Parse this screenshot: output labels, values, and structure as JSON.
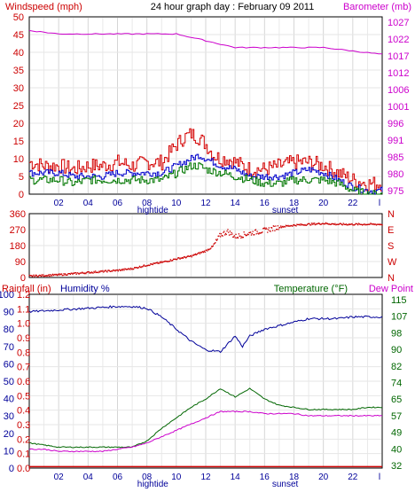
{
  "header": {
    "title": "24 hour graph day : February 09 2011",
    "left_label": "Windspeed (mph)",
    "right_label": "Barometer (mb)"
  },
  "x_axis": {
    "ticks": [
      "02",
      "04",
      "06",
      "08",
      "10",
      "12",
      "14",
      "16",
      "18",
      "20",
      "22",
      "l"
    ],
    "hightide_label": "hightide",
    "sunset_label": "sunset"
  },
  "wind_panel": {
    "right_ticks": [
      "975",
      "980",
      "985",
      "991",
      "996",
      "1001",
      "1006",
      "1012",
      "1017",
      "1022",
      "1027"
    ]
  },
  "direction_panel": {
    "left_ticks": [
      "0",
      "90",
      "180",
      "270",
      "360"
    ],
    "right_letters": [
      "N",
      "E",
      "S",
      "W",
      "N"
    ]
  },
  "temp_panel": {
    "rain_label": "Rainfall (in)",
    "humidity_label": "Humidity %",
    "temp_label": "Temperature (°F)",
    "dew_label": "Dew Point",
    "rain_ticks": [
      "0.0",
      "0.1",
      "0.2",
      "0.3",
      "0.4",
      "0.5",
      "0.6",
      "0.7",
      "0.8",
      "0.9",
      "1.0",
      "1.1",
      "1.2"
    ],
    "right_ticks": [
      "32",
      "40",
      "49",
      "57",
      "65",
      "74",
      "82",
      "90",
      "98",
      "107",
      "115"
    ]
  },
  "colors": {
    "windspeed": "#d40000",
    "gust": "#0000cc",
    "avg_wind": "#007700",
    "barometer": "#cc00cc",
    "direction": "#cc0000",
    "humidity": "#000099",
    "temperature": "#006600",
    "dewpoint": "#cc00cc",
    "rainfall": "#cc0000"
  },
  "chart_data": [
    {
      "type": "line",
      "x_unit": "hour",
      "xlim": [
        0,
        24
      ],
      "ylim": [
        0,
        50
      ],
      "y2lim": [
        975,
        1027
      ],
      "grid": true,
      "series": [
        {
          "key": "windspeed",
          "axis": "left",
          "x": [
            0,
            1,
            2,
            3,
            4,
            5,
            6,
            7,
            8,
            9,
            10,
            10.5,
            11,
            11.5,
            12,
            12.5,
            13,
            13.5,
            14,
            15,
            16,
            17,
            18,
            19,
            20,
            21,
            22,
            23,
            24
          ],
          "values": [
            9,
            8,
            8,
            7,
            8,
            8,
            9,
            8,
            9,
            9,
            14,
            16,
            17,
            16,
            14,
            11,
            10,
            10,
            9,
            7,
            7,
            8,
            9,
            9,
            8,
            6,
            4,
            3,
            3
          ]
        },
        {
          "key": "gust",
          "axis": "left",
          "x": [
            0,
            1,
            2,
            3,
            4,
            5,
            6,
            7,
            8,
            9,
            10,
            11,
            11.5,
            12,
            13,
            14,
            15,
            16,
            17,
            18,
            19,
            20,
            21,
            22,
            23,
            24
          ],
          "values": [
            6,
            6,
            6,
            5,
            5,
            5,
            6,
            6,
            6,
            6,
            8,
            10,
            11,
            10,
            8,
            7,
            5,
            5,
            5,
            6,
            7,
            6,
            4,
            2,
            1,
            1
          ]
        },
        {
          "key": "avg_wind",
          "axis": "left",
          "x": [
            0,
            1,
            2,
            3,
            4,
            5,
            6,
            7,
            8,
            9,
            10,
            11,
            11.5,
            12,
            13,
            14,
            15,
            16,
            17,
            18,
            19,
            20,
            21,
            22,
            23,
            24
          ],
          "values": [
            4,
            4,
            4,
            3,
            4,
            4,
            4,
            4,
            4,
            4,
            6,
            8,
            8,
            7,
            6,
            5,
            4,
            3,
            3,
            4,
            4,
            4,
            3,
            1,
            0,
            0
          ]
        },
        {
          "key": "barometer",
          "axis": "right",
          "x": [
            0,
            2,
            4,
            6,
            8,
            10,
            12,
            14,
            16,
            18,
            20,
            22,
            24
          ],
          "values": [
            1023,
            1022,
            1022,
            1022,
            1022,
            1022,
            1020,
            1018,
            1018,
            1018,
            1018,
            1017,
            1016
          ]
        }
      ]
    },
    {
      "type": "scatter",
      "x_unit": "hour",
      "xlim": [
        0,
        24
      ],
      "ylim": [
        0,
        360
      ],
      "grid": true,
      "series": [
        {
          "key": "direction",
          "x": [
            0,
            2,
            4,
            6,
            7,
            8,
            9,
            10,
            11,
            12,
            12.5,
            13,
            13.5,
            14,
            15,
            16,
            17,
            18,
            19,
            20,
            21,
            22,
            23,
            24
          ],
          "values": [
            8,
            15,
            28,
            40,
            50,
            70,
            85,
            105,
            120,
            150,
            175,
            240,
            260,
            230,
            250,
            265,
            285,
            295,
            300,
            305,
            300,
            300,
            300,
            300
          ]
        }
      ]
    },
    {
      "type": "line",
      "x_unit": "hour",
      "xlim": [
        0,
        24
      ],
      "ylim": [
        0,
        100
      ],
      "y2lim": [
        32,
        115
      ],
      "rain_lim": [
        0,
        1.2
      ],
      "grid": true,
      "series": [
        {
          "key": "humidity",
          "axis": "left",
          "x": [
            0,
            2,
            4,
            6,
            7,
            8,
            9,
            10,
            11,
            12,
            13,
            14,
            14.5,
            15,
            16,
            17,
            18,
            19,
            20,
            21,
            22,
            23,
            24
          ],
          "values": [
            90,
            91,
            92,
            93,
            93,
            92,
            87,
            80,
            73,
            68,
            67,
            76,
            70,
            76,
            80,
            82,
            84,
            86,
            86,
            86,
            87,
            87,
            87
          ]
        },
        {
          "key": "temperature",
          "axis": "right",
          "x": [
            0,
            1,
            2,
            3,
            4,
            5,
            6,
            7,
            8,
            9,
            10,
            11,
            12,
            13,
            14,
            15,
            16,
            17,
            18,
            19,
            20,
            21,
            22,
            23,
            24
          ],
          "values": [
            44,
            43,
            42,
            42,
            42,
            42,
            42,
            42,
            45,
            51,
            56,
            61,
            65,
            70,
            66,
            70,
            65,
            62,
            61,
            60,
            60,
            60,
            60,
            61,
            61
          ]
        },
        {
          "key": "dewpoint",
          "axis": "right",
          "x": [
            0,
            1,
            2,
            3,
            4,
            5,
            6,
            7,
            8,
            9,
            10,
            11,
            12,
            13,
            14,
            15,
            16,
            17,
            18,
            19,
            20,
            21,
            22,
            23,
            24
          ],
          "values": [
            41,
            41,
            40,
            40,
            40,
            40,
            41,
            42,
            44,
            47,
            50,
            53,
            56,
            59,
            59,
            59,
            58,
            58,
            58,
            57,
            57,
            57,
            57,
            57,
            57
          ]
        },
        {
          "key": "rainfall",
          "axis": "rain",
          "x": [
            0,
            24
          ],
          "values": [
            0.01,
            0.01
          ]
        }
      ]
    }
  ]
}
